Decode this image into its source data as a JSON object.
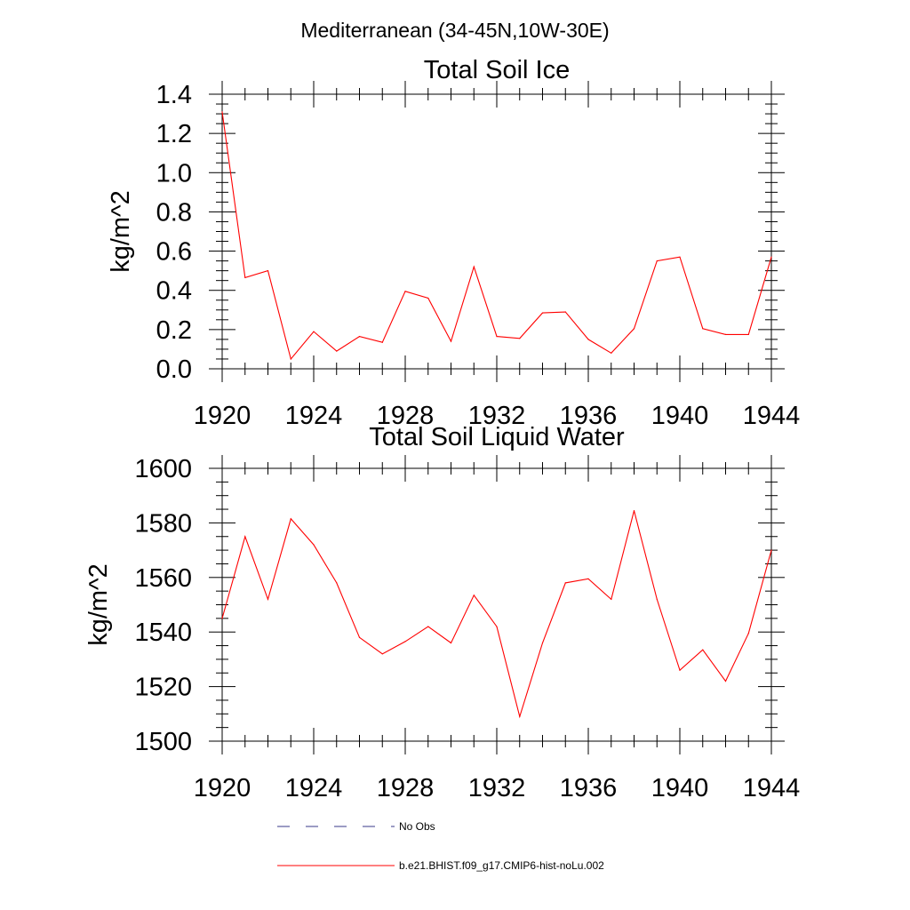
{
  "figure": {
    "suptitle": "Mediterranean (34-45N,10W-30E)"
  },
  "legend": {
    "entries": [
      {
        "label": "No Obs",
        "color": "#3a3a8a",
        "style": "dashed"
      },
      {
        "label": "b.e21.BHIST.f09_g17.CMIP6-hist-noLu.002",
        "color": "#ff0000",
        "style": "solid"
      }
    ]
  },
  "chart_data": [
    {
      "type": "line",
      "title": "Total Soil Ice",
      "xlabel": "",
      "ylabel": "kg/m^2",
      "xlim": [
        1920,
        1944
      ],
      "ylim": [
        0.0,
        1.4
      ],
      "xticks": [
        1920,
        1924,
        1928,
        1932,
        1936,
        1940,
        1944
      ],
      "yticks": [
        0.0,
        0.2,
        0.4,
        0.6,
        0.8,
        1.0,
        1.2,
        1.4
      ],
      "xtick_labels": [
        "1920",
        "1924",
        "1928",
        "1932",
        "1936",
        "1940",
        "1944"
      ],
      "ytick_labels": [
        "0.0",
        "0.2",
        "0.4",
        "0.6",
        "0.8",
        "1.0",
        "1.2",
        "1.4"
      ],
      "grid": false,
      "series": [
        {
          "name": "b.e21.BHIST.f09_g17.CMIP6-hist-noLu.002",
          "color": "#ff0000",
          "x": [
            1920,
            1921,
            1922,
            1923,
            1924,
            1925,
            1926,
            1927,
            1928,
            1929,
            1930,
            1931,
            1932,
            1933,
            1934,
            1935,
            1936,
            1937,
            1938,
            1939,
            1940,
            1941,
            1942,
            1943,
            1944
          ],
          "y": [
            1.31,
            0.465,
            0.5,
            0.05,
            0.19,
            0.09,
            0.165,
            0.135,
            0.395,
            0.36,
            0.14,
            0.52,
            0.165,
            0.155,
            0.285,
            0.29,
            0.15,
            0.08,
            0.205,
            0.55,
            0.57,
            0.205,
            0.175,
            0.175,
            0.57
          ]
        }
      ]
    },
    {
      "type": "line",
      "title": "Total Soil Liquid Water",
      "xlabel": "",
      "ylabel": "kg/m^2",
      "xlim": [
        1920,
        1944
      ],
      "ylim": [
        1500,
        1600
      ],
      "xticks": [
        1920,
        1924,
        1928,
        1932,
        1936,
        1940,
        1944
      ],
      "yticks": [
        1500,
        1520,
        1540,
        1560,
        1580,
        1600
      ],
      "xtick_labels": [
        "1920",
        "1924",
        "1928",
        "1932",
        "1936",
        "1940",
        "1944"
      ],
      "ytick_labels": [
        "1500",
        "1520",
        "1540",
        "1560",
        "1580",
        "1600"
      ],
      "grid": false,
      "series": [
        {
          "name": "b.e21.BHIST.f09_g17.CMIP6-hist-noLu.002",
          "color": "#ff0000",
          "x": [
            1920,
            1921,
            1922,
            1923,
            1924,
            1925,
            1926,
            1927,
            1928,
            1929,
            1930,
            1931,
            1932,
            1933,
            1934,
            1935,
            1936,
            1937,
            1938,
            1939,
            1940,
            1941,
            1942,
            1943,
            1944
          ],
          "y": [
            1545,
            1575,
            1552,
            1581.5,
            1572,
            1558,
            1538,
            1532,
            1536.5,
            1542,
            1536,
            1553.5,
            1542,
            1509,
            1536,
            1558,
            1559.5,
            1552,
            1584.5,
            1552,
            1526,
            1533.5,
            1522,
            1539.5,
            1570
          ]
        }
      ]
    }
  ]
}
